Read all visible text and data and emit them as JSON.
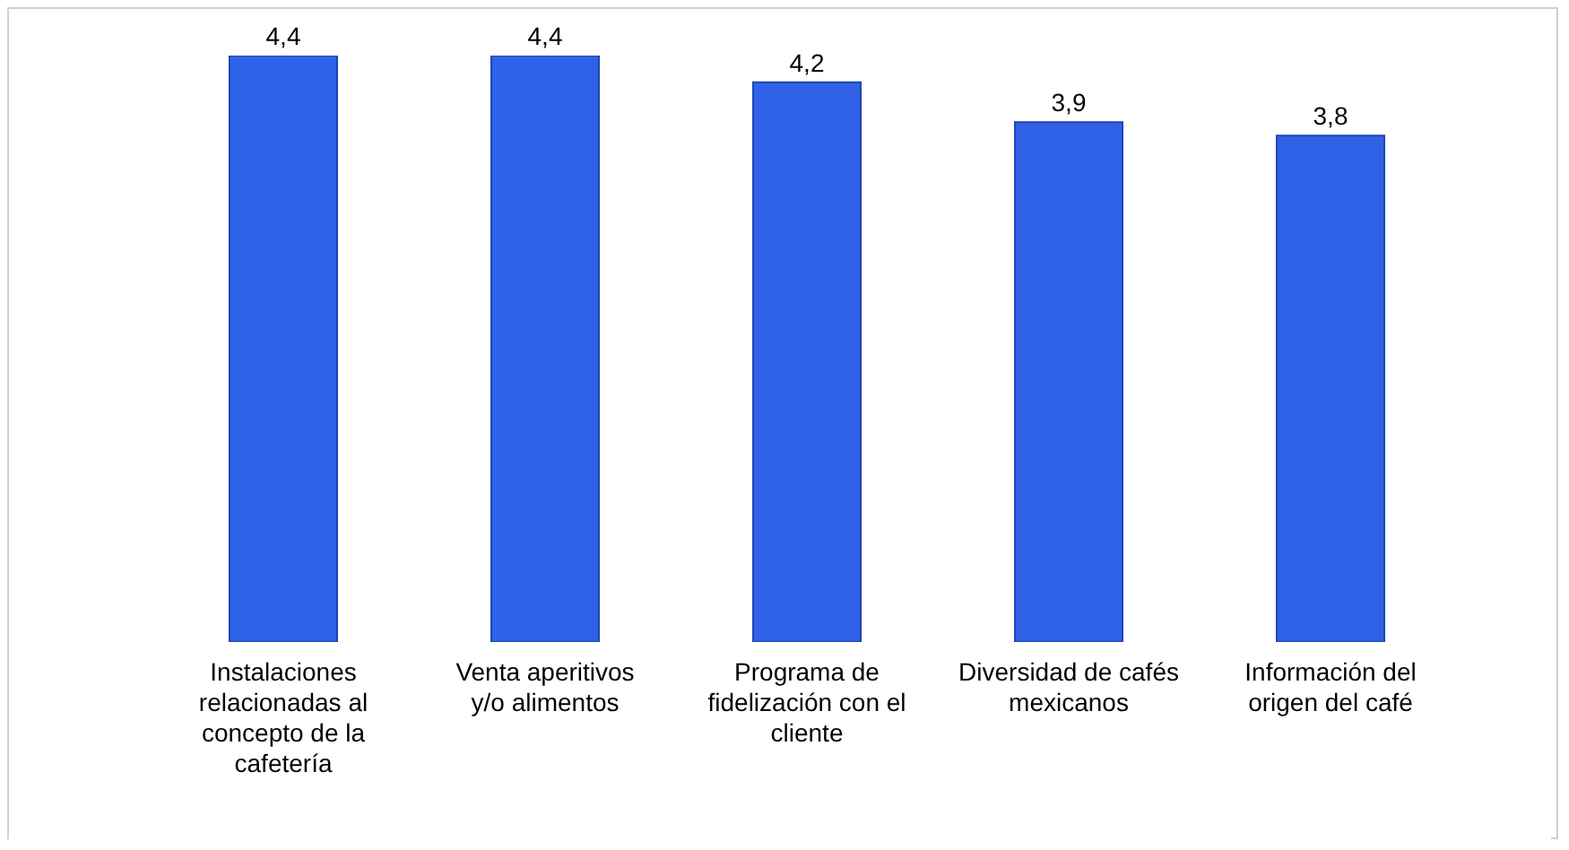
{
  "chart_data": {
    "type": "bar",
    "categories": [
      "Instalaciones relacionadas al concepto de la cafetería",
      "Venta aperitivos y/o alimentos",
      "Programa de fidelización con el cliente",
      "Diversidad de cafés mexicanos",
      "Información del origen del café"
    ],
    "values": [
      4.4,
      4.4,
      4.2,
      3.9,
      3.8
    ],
    "value_labels": [
      "4,4",
      "4,4",
      "4,2",
      "3,9",
      "3,8"
    ],
    "color": "#2f62e6",
    "tick_labels": "x"
  }
}
